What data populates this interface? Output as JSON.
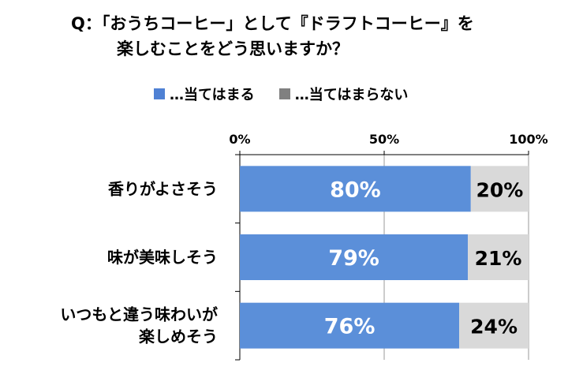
{
  "title": {
    "line1": "Q：「おうちコーヒー」として『ドラフトコーヒー』を",
    "line2": "楽しむことをどう思いますか？"
  },
  "colors": {
    "yes": "#5b8fd9",
    "no": "#d9d9d9",
    "axis": "#000000"
  },
  "legend": [
    {
      "label": "…当てはまる",
      "color": "#4f81d4"
    },
    {
      "label": "…当てはまらない",
      "color": "#808080"
    }
  ],
  "chart_data": {
    "type": "bar",
    "orientation": "horizontal",
    "stacked": "100%",
    "x_ticks": [
      "0%",
      "50%",
      "100%"
    ],
    "xlim": [
      0,
      100
    ],
    "categories": [
      [
        "香りがよさそう"
      ],
      [
        "味が美味しそう"
      ],
      [
        "いつもと違う味わいが",
        "楽しめそう"
      ]
    ],
    "series": [
      {
        "name": "…当てはまる",
        "values": [
          80,
          79,
          76
        ],
        "labels": [
          "80%",
          "79%",
          "76%"
        ]
      },
      {
        "name": "…当てはまらない",
        "values": [
          20,
          21,
          24
        ],
        "labels": [
          "20%",
          "21%",
          "24%"
        ]
      }
    ],
    "grid": true,
    "legend_position": "top"
  }
}
